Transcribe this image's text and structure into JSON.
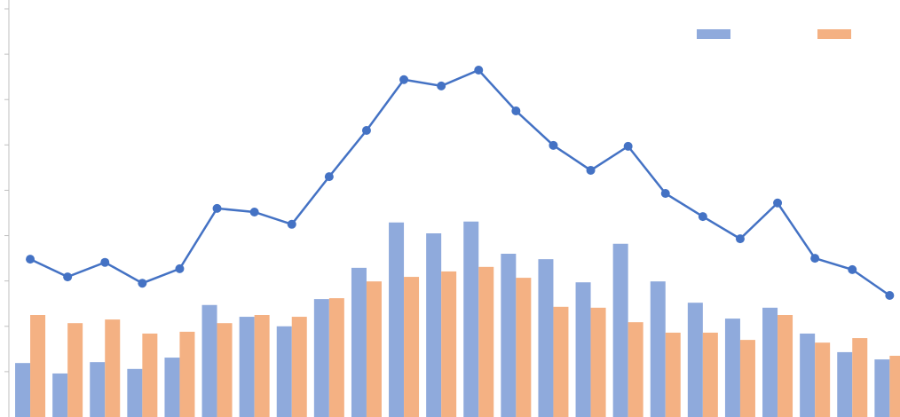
{
  "chart_data": {
    "type": "bar",
    "categories": [
      null,
      null,
      null,
      null,
      null,
      null,
      null,
      null,
      null,
      null,
      null,
      null,
      null,
      null,
      null,
      null,
      null,
      null,
      null,
      null,
      null,
      null,
      null,
      null
    ],
    "series": [
      {
        "type": "bar",
        "color": "#8faadc",
        "values": [
          1.19,
          0.96,
          1.21,
          1.06,
          1.31,
          2.47,
          2.21,
          2.0,
          2.6,
          3.29,
          4.29,
          4.05,
          4.31,
          3.6,
          3.48,
          2.97,
          3.82,
          2.99,
          2.52,
          2.17,
          2.41,
          1.84,
          1.43,
          1.27
        ]
      },
      {
        "type": "bar",
        "color": "#f4b183",
        "values": [
          2.25,
          2.07,
          2.15,
          1.84,
          1.88,
          2.07,
          2.25,
          2.21,
          2.62,
          2.99,
          3.09,
          3.21,
          3.31,
          3.07,
          2.43,
          2.41,
          2.09,
          1.86,
          1.86,
          1.7,
          2.25,
          1.64,
          1.74,
          1.35
        ]
      },
      {
        "type": "line",
        "color": "#4472c4",
        "values": [
          3.48,
          3.09,
          3.41,
          2.95,
          3.27,
          4.6,
          4.52,
          4.25,
          5.3,
          6.32,
          7.44,
          7.3,
          7.65,
          6.75,
          5.99,
          5.44,
          5.97,
          4.93,
          4.42,
          3.93,
          4.72,
          3.5,
          3.25,
          2.68
        ]
      }
    ],
    "ylim": [
      0,
      9
    ],
    "yticks": [
      1,
      2,
      3,
      4,
      5,
      6,
      7,
      8,
      9
    ]
  }
}
